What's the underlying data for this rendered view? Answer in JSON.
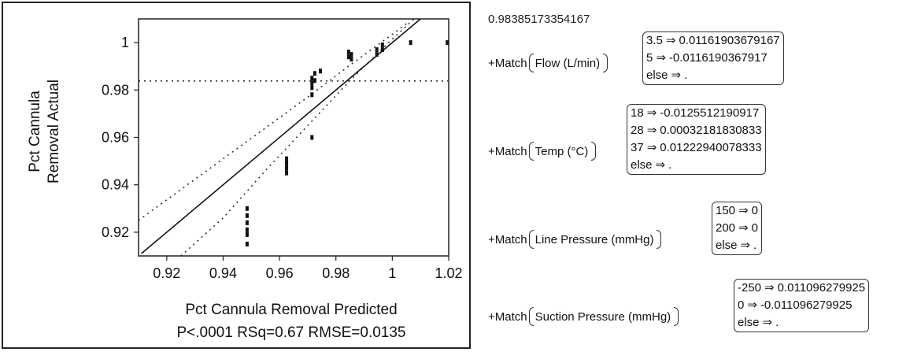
{
  "chart_data": {
    "type": "scatter",
    "title": "",
    "xlabel": "Pct Cannula Removal Predicted",
    "stats_label": "P<.0001 RSq=0.67 RMSE=0.0135",
    "ylabel_line1": "Pct Cannula",
    "ylabel_line2": "Removal Actual",
    "xlim": [
      0.91,
      1.02
    ],
    "ylim": [
      0.91,
      1.01
    ],
    "xticks": [
      "0.92",
      "0.94",
      "0.96",
      "0.98",
      "1",
      "1.02"
    ],
    "yticks": [
      "0.92",
      "0.94",
      "0.96",
      "0.98",
      "1"
    ],
    "xtick_values": [
      0.92,
      0.94,
      0.96,
      0.98,
      1.0,
      1.02
    ],
    "ytick_values": [
      0.92,
      0.94,
      0.96,
      0.98,
      1.0
    ],
    "mean_line_y": 0.9838,
    "fit_line": [
      [
        0.911,
        0.911
      ],
      [
        1.0105,
        1.0105
      ]
    ],
    "ci_upper": [
      [
        0.91,
        0.925
      ],
      [
        0.925,
        0.938
      ],
      [
        0.94,
        0.951
      ],
      [
        0.955,
        0.964
      ],
      [
        0.97,
        0.977
      ],
      [
        0.985,
        0.9905
      ],
      [
        1.0,
        1.0035
      ],
      [
        1.005,
        1.008
      ]
    ],
    "ci_lower": [
      [
        0.925,
        0.91
      ],
      [
        0.94,
        0.926
      ],
      [
        0.955,
        0.946
      ],
      [
        0.97,
        0.965
      ],
      [
        0.985,
        0.984
      ],
      [
        1.0,
        1.0015
      ],
      [
        1.015,
        1.018
      ],
      [
        1.02,
        1.024
      ]
    ],
    "points": [
      [
        0.9485,
        0.93
      ],
      [
        0.9485,
        0.927
      ],
      [
        0.9485,
        0.924
      ],
      [
        0.9485,
        0.921
      ],
      [
        0.9485,
        0.919
      ],
      [
        0.9485,
        0.915
      ],
      [
        0.9625,
        0.951
      ],
      [
        0.9625,
        0.949
      ],
      [
        0.9625,
        0.947
      ],
      [
        0.9625,
        0.945
      ],
      [
        0.9715,
        0.985
      ],
      [
        0.9715,
        0.983
      ],
      [
        0.9715,
        0.981
      ],
      [
        0.9715,
        0.978
      ],
      [
        0.9715,
        0.96
      ],
      [
        0.9725,
        0.987
      ],
      [
        0.9725,
        0.984
      ],
      [
        0.9745,
        0.988
      ],
      [
        0.9845,
        0.996
      ],
      [
        0.9845,
        0.994
      ],
      [
        0.9855,
        0.995
      ],
      [
        0.9855,
        0.993
      ],
      [
        0.9945,
        0.997
      ],
      [
        0.9945,
        0.995
      ],
      [
        0.9965,
        0.999
      ],
      [
        0.9965,
        0.997
      ],
      [
        1.0065,
        1.0
      ],
      [
        1.0195,
        1.0
      ]
    ]
  },
  "equation": {
    "intercept": "0.98385173354167",
    "terms": [
      {
        "prefix": "+Match",
        "variable": "Flow (L/min)",
        "cases": [
          {
            "key": "3.5",
            "arrow": "⇒",
            "value": "0.01161903679167"
          },
          {
            "key": "5",
            "arrow": "⇒",
            "value": "-0.0116190367917"
          },
          {
            "key": "else",
            "arrow": "⇒",
            "value": "."
          }
        ]
      },
      {
        "prefix": "+Match",
        "variable": "Temp (°C)",
        "cases": [
          {
            "key": "18",
            "arrow": "⇒",
            "value": "-0.0125512190917"
          },
          {
            "key": "28",
            "arrow": "⇒",
            "value": "0.00032181830833"
          },
          {
            "key": "37",
            "arrow": "⇒",
            "value": "0.01222940078333"
          },
          {
            "key": "else",
            "arrow": "⇒",
            "value": "."
          }
        ]
      },
      {
        "prefix": "+Match",
        "variable": "Line Pressure (mmHg)",
        "cases": [
          {
            "key": "150",
            "arrow": "⇒",
            "value": "0"
          },
          {
            "key": "200",
            "arrow": "⇒",
            "value": "0"
          },
          {
            "key": "else",
            "arrow": "⇒",
            "value": "."
          }
        ]
      },
      {
        "prefix": "+Match",
        "variable": "Suction Pressure (mmHg)",
        "cases": [
          {
            "key": "-250",
            "arrow": "⇒",
            "value": "0.011096279925"
          },
          {
            "key": "0",
            "arrow": "⇒",
            "value": "-0.011096279925"
          },
          {
            "key": "else",
            "arrow": "⇒",
            "value": "."
          }
        ]
      }
    ]
  }
}
